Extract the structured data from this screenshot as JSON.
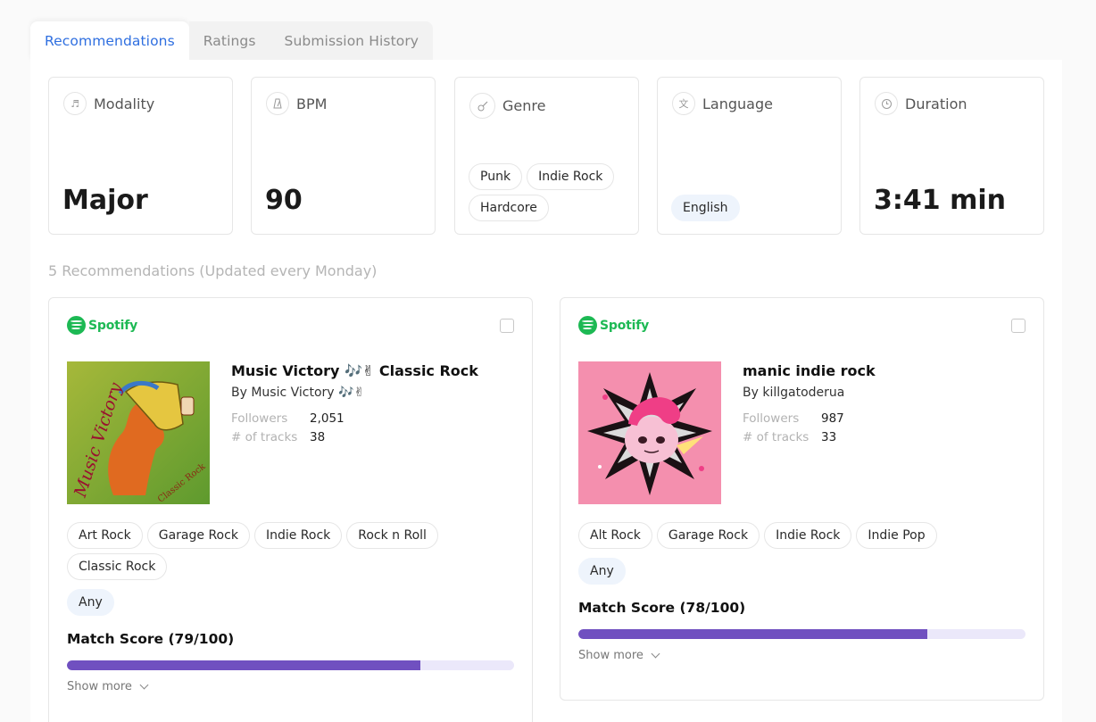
{
  "tabs": [
    {
      "label": "Recommendations",
      "active": true
    },
    {
      "label": "Ratings",
      "active": false
    },
    {
      "label": "Submission History",
      "active": false
    }
  ],
  "stats": {
    "modality": {
      "label": "Modality",
      "value": "Major",
      "icon": "music-note-icon"
    },
    "bpm": {
      "label": "BPM",
      "value": "90",
      "icon": "metronome-icon"
    },
    "genre": {
      "label": "Genre",
      "tags": [
        "Punk",
        "Indie Rock",
        "Hardcore"
      ],
      "icon": "guitar-icon"
    },
    "language": {
      "label": "Language",
      "tags": [
        "English"
      ],
      "icon": "translate-icon"
    },
    "duration": {
      "label": "Duration",
      "value": "3:41 min",
      "icon": "clock-icon"
    }
  },
  "recommendations_header": "5 Recommendations (Updated every Monday)",
  "recommendations": [
    {
      "platform": "Spotify",
      "title": "Music Victory 🎶✌ Classic Rock",
      "by": "By Music Victory 🎶✌",
      "followers_label": "Followers",
      "followers": "2,051",
      "tracks_label": "# of tracks",
      "tracks": "38",
      "tags": [
        "Art Rock",
        "Garage Rock",
        "Indie Rock",
        "Rock n Roll",
        "Classic Rock"
      ],
      "extra_tag": "Any",
      "match_label": "Match Score (79/100)",
      "match_score": 79,
      "show_more": "Show more",
      "cover_text_main": "Music Victory",
      "cover_text_sub": "Classic Rock"
    },
    {
      "platform": "Spotify",
      "title": "manic indie rock",
      "by": "By killgatoderua",
      "followers_label": "Followers",
      "followers": "987",
      "tracks_label": "# of tracks",
      "tracks": "33",
      "tags": [
        "Alt Rock",
        "Garage Rock",
        "Indie Rock",
        "Indie Pop"
      ],
      "extra_tag": "Any",
      "match_label": "Match Score (78/100)",
      "match_score": 78,
      "show_more": "Show more"
    }
  ],
  "colors": {
    "accent": "#2f6fe0",
    "spotify": "#1db954",
    "bar_fill": "#7050c0",
    "bar_track": "#ebe8fa"
  }
}
